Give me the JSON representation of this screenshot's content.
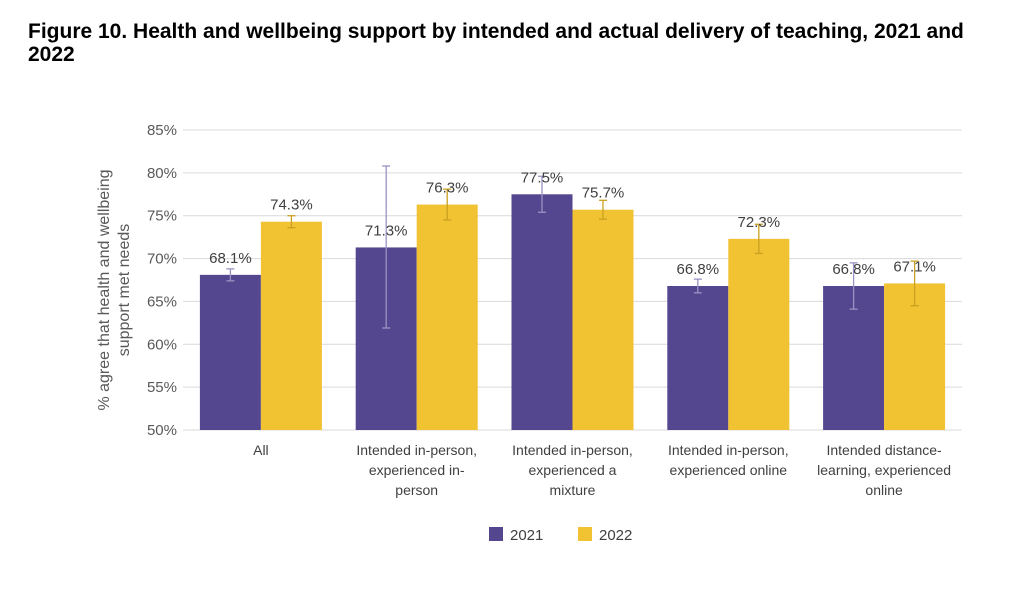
{
  "title": "Figure 10. Health and wellbeing support by intended and actual delivery of teaching, 2021 and 2022",
  "colors": {
    "2021": "#55478f",
    "2022": "#f1c232",
    "grid": "#d9d9d9",
    "errorbar_2021": "#9b92c4",
    "errorbar_2022": "#c9a020"
  },
  "chart_data": {
    "type": "bar",
    "title": "Figure 10. Health and wellbeing support by intended and actual delivery of teaching, 2021 and 2022",
    "ylabel": "% agree that health and wellbeing support met needs",
    "xlabel": "",
    "ylim": [
      50,
      85
    ],
    "yticks": [
      50,
      55,
      60,
      65,
      70,
      75,
      80,
      85
    ],
    "ytick_labels": [
      "50%",
      "55%",
      "60%",
      "65%",
      "70%",
      "75%",
      "80%",
      "85%"
    ],
    "grid": true,
    "legend_position": "bottom",
    "categories": [
      [
        "All"
      ],
      [
        "Intended in-person,",
        "experienced in-",
        "person"
      ],
      [
        "Intended in-person,",
        "experienced a",
        "mixture"
      ],
      [
        "Intended in-person,",
        "experienced online"
      ],
      [
        "Intended distance-",
        "learning, experienced",
        "online"
      ]
    ],
    "series": [
      {
        "name": "2021",
        "values": [
          68.1,
          71.3,
          77.5,
          66.8,
          66.8
        ],
        "labels": [
          "68.1%",
          "71.3%",
          "77.5%",
          "66.8%",
          "66.8%"
        ],
        "error_low": [
          67.4,
          61.9,
          75.4,
          66.0,
          64.1
        ],
        "error_high": [
          68.8,
          80.8,
          79.6,
          67.6,
          69.5
        ]
      },
      {
        "name": "2022",
        "values": [
          74.3,
          76.3,
          75.7,
          72.3,
          67.1
        ],
        "labels": [
          "74.3%",
          "76.3%",
          "75.7%",
          "72.3%",
          "67.1%"
        ],
        "error_low": [
          73.6,
          74.5,
          74.6,
          70.6,
          64.5
        ],
        "error_high": [
          75.0,
          78.1,
          76.8,
          74.0,
          69.7
        ]
      }
    ]
  }
}
